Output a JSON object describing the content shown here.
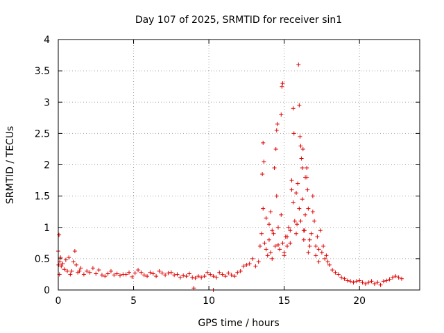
{
  "chart_data": {
    "type": "scatter",
    "title": "Day 107 of 2025, SRMTID for receiver sin1",
    "xlabel": "GPS time / hours",
    "ylabel": "SRMTID / TECUs",
    "xlim": [
      0,
      24
    ],
    "ylim": [
      0,
      4
    ],
    "xticks": [
      0,
      5,
      10,
      15,
      20
    ],
    "yticks": [
      0,
      0.5,
      1,
      1.5,
      2,
      2.5,
      3,
      3.5,
      4
    ],
    "xtick_labels": [
      "0",
      "5",
      "10",
      "15",
      "20"
    ],
    "ytick_labels": [
      "0",
      "0.5",
      "1",
      "1.5",
      "2",
      "2.5",
      "3",
      "3.5",
      "4"
    ],
    "grid": true,
    "marker": "+",
    "color": "#e00000",
    "series": [
      {
        "name": "sin1",
        "x": [
          0.0,
          0.05,
          0.1,
          0.15,
          0.2,
          0.3,
          0.4,
          0.5,
          0.6,
          0.7,
          0.8,
          0.9,
          1.0,
          1.1,
          1.2,
          1.3,
          1.4,
          1.5,
          1.7,
          1.9,
          2.1,
          2.3,
          2.5,
          2.7,
          2.9,
          3.1,
          3.3,
          3.5,
          3.7,
          3.9,
          4.1,
          4.3,
          4.5,
          4.7,
          4.9,
          5.1,
          5.3,
          5.5,
          5.7,
          5.9,
          6.1,
          6.3,
          6.5,
          6.7,
          6.9,
          7.1,
          7.3,
          7.5,
          7.7,
          7.9,
          8.1,
          8.3,
          8.5,
          8.7,
          8.9,
          9.1,
          9.3,
          9.5,
          9.7,
          9.9,
          10.1,
          10.3,
          10.5,
          10.7,
          10.9,
          11.1,
          11.3,
          11.5,
          11.7,
          11.9,
          12.1,
          12.3,
          12.5,
          12.7,
          12.9,
          13.1,
          13.3,
          13.4,
          13.5,
          13.6,
          13.7,
          13.8,
          13.9,
          14.0,
          14.1,
          14.2,
          14.3,
          14.4,
          14.5,
          14.6,
          14.7,
          14.8,
          14.9,
          15.0,
          15.1,
          15.2,
          15.3,
          15.4,
          15.5,
          15.6,
          15.7,
          15.8,
          15.9,
          16.0,
          16.1,
          16.2,
          16.3,
          16.4,
          16.5,
          16.6,
          16.7,
          16.8,
          16.9,
          17.0,
          17.1,
          17.2,
          17.3,
          17.4,
          17.5,
          17.6,
          17.7,
          17.8,
          17.9,
          18.0,
          18.2,
          18.4,
          18.6,
          18.8,
          19.0,
          19.2,
          19.4,
          19.6,
          19.8,
          20.0,
          20.2,
          20.4,
          20.6,
          20.8,
          21.0,
          21.2,
          21.4,
          21.6,
          21.8,
          22.0,
          22.2,
          22.4,
          22.6,
          22.8,
          0.02,
          0.08,
          13.6,
          13.65,
          14.35,
          14.45,
          14.8,
          14.85,
          14.9,
          15.95,
          16.0,
          16.05,
          16.2,
          16.25,
          16.4,
          14.5,
          14.55,
          15.6,
          15.65,
          16.1,
          16.15,
          16.5,
          16.55,
          16.9,
          13.8,
          14.0,
          14.2,
          14.6,
          15.0,
          15.2,
          15.4,
          15.8,
          16.3,
          16.7,
          17.1,
          17.3,
          9.0,
          10.3,
          13.55,
          14.1,
          15.5,
          15.85,
          16.35,
          16.6
        ],
        "y": [
          0.62,
          0.88,
          0.45,
          0.52,
          0.38,
          0.42,
          0.33,
          0.48,
          0.3,
          0.52,
          0.25,
          0.3,
          0.45,
          0.62,
          0.4,
          0.28,
          0.3,
          0.35,
          0.25,
          0.3,
          0.28,
          0.35,
          0.26,
          0.32,
          0.24,
          0.22,
          0.26,
          0.3,
          0.24,
          0.26,
          0.23,
          0.25,
          0.25,
          0.28,
          0.21,
          0.27,
          0.32,
          0.28,
          0.24,
          0.22,
          0.28,
          0.26,
          0.22,
          0.3,
          0.27,
          0.24,
          0.27,
          0.28,
          0.24,
          0.25,
          0.2,
          0.23,
          0.22,
          0.26,
          0.2,
          0.19,
          0.22,
          0.2,
          0.22,
          0.28,
          0.25,
          0.22,
          0.2,
          0.28,
          0.25,
          0.22,
          0.27,
          0.24,
          0.22,
          0.28,
          0.3,
          0.38,
          0.4,
          0.42,
          0.5,
          0.38,
          0.45,
          0.7,
          0.9,
          1.3,
          0.75,
          0.65,
          0.55,
          0.8,
          0.6,
          0.5,
          0.9,
          0.7,
          1.5,
          1.0,
          0.65,
          1.2,
          0.75,
          0.55,
          0.85,
          0.7,
          1.0,
          0.95,
          1.6,
          1.4,
          1.1,
          1.55,
          1.7,
          1.3,
          1.1,
          1.45,
          0.95,
          1.2,
          1.8,
          1.3,
          0.8,
          0.9,
          1.25,
          1.1,
          0.7,
          0.85,
          0.65,
          0.95,
          0.6,
          0.7,
          0.5,
          0.55,
          0.45,
          0.4,
          0.32,
          0.28,
          0.25,
          0.2,
          0.18,
          0.15,
          0.14,
          0.12,
          0.14,
          0.15,
          0.12,
          0.1,
          0.12,
          0.14,
          0.1,
          0.12,
          0.08,
          0.14,
          0.15,
          0.17,
          0.2,
          0.22,
          0.2,
          0.18,
          0.4,
          0.25,
          2.35,
          2.05,
          1.95,
          2.25,
          2.8,
          3.25,
          3.3,
          3.6,
          2.95,
          2.45,
          1.95,
          2.25,
          1.8,
          2.55,
          2.65,
          2.9,
          2.5,
          2.3,
          2.1,
          1.95,
          1.6,
          1.5,
          1.15,
          1.05,
          0.95,
          0.72,
          0.6,
          0.85,
          0.75,
          0.9,
          0.8,
          0.7,
          0.55,
          0.45,
          0.03,
          0.0,
          1.85,
          1.25,
          1.75,
          1.05,
          0.95,
          0.6
        ]
      }
    ]
  }
}
